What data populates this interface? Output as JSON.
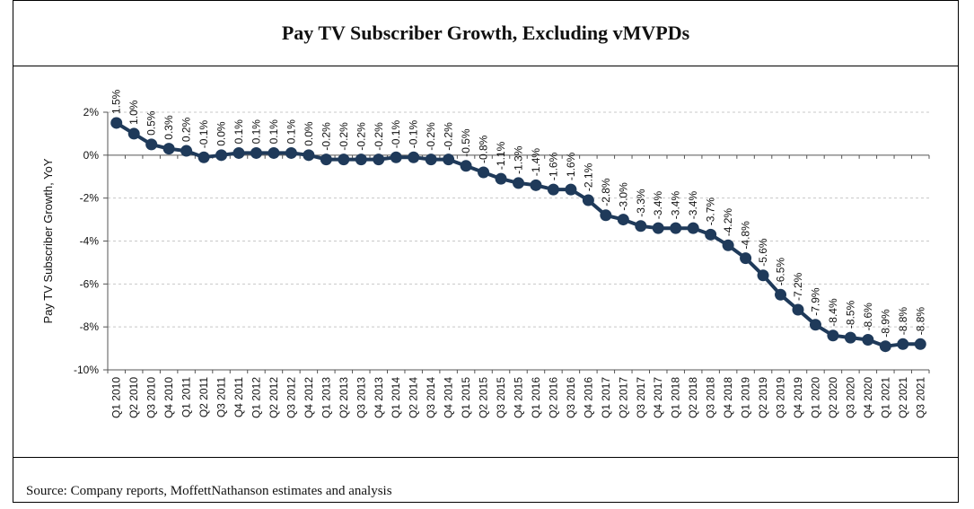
{
  "title": "Pay TV Subscriber Growth, Excluding vMVPDs",
  "source": "Source: Company reports, MoffettNathanson estimates and analysis",
  "chart_data": {
    "type": "line",
    "title": "Pay TV Subscriber Growth, Excluding vMVPDs",
    "xlabel": "",
    "ylabel": "Pay TV Subscriber Growth, YoY",
    "ylim": [
      -10,
      2
    ],
    "yticks": [
      2,
      0,
      -2,
      -4,
      -6,
      -8,
      -10
    ],
    "ytick_labels": [
      "2%",
      "0%",
      "-2%",
      "-4%",
      "-6%",
      "-8%",
      "-10%"
    ],
    "grid": true,
    "line_color": "#1f3a5a",
    "categories": [
      "Q1 2010",
      "Q2 2010",
      "Q3 2010",
      "Q4 2010",
      "Q1 2011",
      "Q2 2011",
      "Q3 2011",
      "Q4 2011",
      "Q1 2012",
      "Q2 2012",
      "Q3 2012",
      "Q4 2012",
      "Q1 2013",
      "Q2 2013",
      "Q3 2013",
      "Q4 2013",
      "Q1 2014",
      "Q2 2014",
      "Q3 2014",
      "Q4 2014",
      "Q1 2015",
      "Q2 2015",
      "Q3 2015",
      "Q4 2015",
      "Q1 2016",
      "Q2 2016",
      "Q3 2016",
      "Q4 2016",
      "Q1 2017",
      "Q2 2017",
      "Q3 2017",
      "Q4 2017",
      "Q1 2018",
      "Q2 2018",
      "Q3 2018",
      "Q4 2018",
      "Q1 2019",
      "Q2 2019",
      "Q3 2019",
      "Q4 2019",
      "Q1 2020",
      "Q2 2020",
      "Q3 2020",
      "Q4 2020",
      "Q1 2021",
      "Q2 2021",
      "Q3 2021"
    ],
    "values": [
      1.5,
      1.0,
      0.5,
      0.3,
      0.2,
      -0.1,
      0.0,
      0.1,
      0.1,
      0.1,
      0.1,
      0.0,
      -0.2,
      -0.2,
      -0.2,
      -0.2,
      -0.1,
      -0.1,
      -0.2,
      -0.2,
      -0.5,
      -0.8,
      -1.1,
      -1.3,
      -1.4,
      -1.6,
      -1.6,
      -2.1,
      -2.8,
      -3.0,
      -3.3,
      -3.4,
      -3.4,
      -3.4,
      -3.7,
      -4.2,
      -4.8,
      -5.6,
      -6.5,
      -7.2,
      -7.9,
      -8.4,
      -8.5,
      -8.6,
      -8.9,
      -8.8,
      -8.8
    ],
    "data_labels": [
      "1.5%",
      "1.0%",
      "0.5%",
      "0.3%",
      "0.2%",
      "-0.1%",
      "0.0%",
      "0.1%",
      "0.1%",
      "0.1%",
      "0.1%",
      "0.0%",
      "-0.2%",
      "-0.2%",
      "-0.2%",
      "-0.2%",
      "-0.1%",
      "-0.1%",
      "-0.2%",
      "-0.2%",
      "-0.5%",
      "-0.8%",
      "-1.1%",
      "-1.3%",
      "-1.4%",
      "-1.6%",
      "-1.6%",
      "-2.1%",
      "-2.8%",
      "-3.0%",
      "-3.3%",
      "-3.4%",
      "-3.4%",
      "-3.4%",
      "-3.7%",
      "-4.2%",
      "-4.8%",
      "-5.6%",
      "-6.5%",
      "-7.2%",
      "-7.9%",
      "-8.4%",
      "-8.5%",
      "-8.6%",
      "-8.9%",
      "-8.8%",
      "-8.8%"
    ]
  }
}
